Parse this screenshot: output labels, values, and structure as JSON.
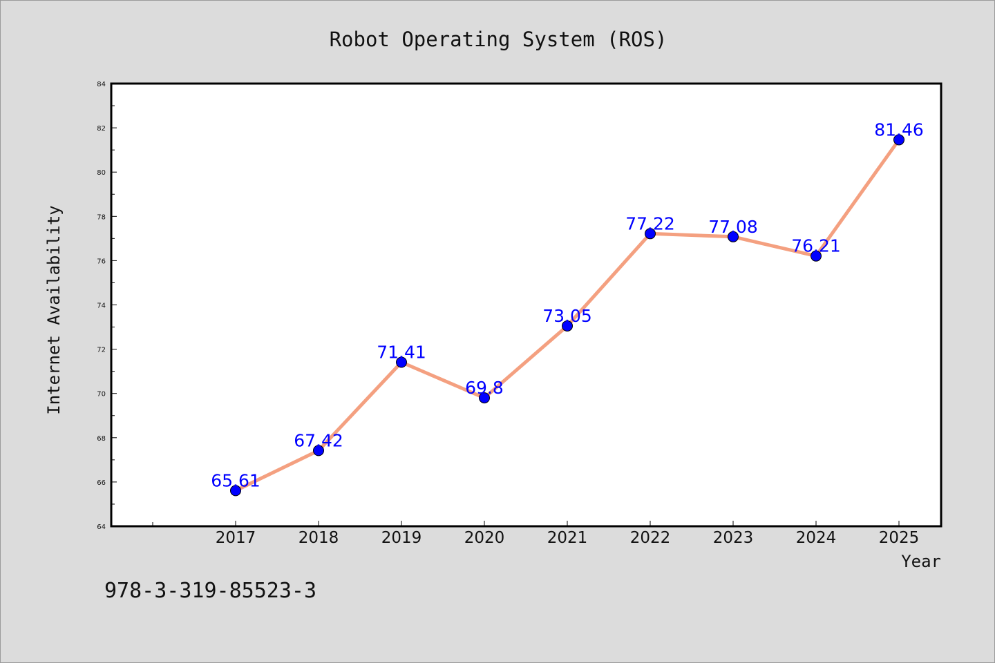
{
  "chart_data": {
    "type": "line",
    "title": "Robot Operating System (ROS)",
    "xlabel": "Year",
    "ylabel": "Internet Availability",
    "x": [
      "2017",
      "2018",
      "2019",
      "2020",
      "2021",
      "2022",
      "2023",
      "2024",
      "2025"
    ],
    "y": [
      65.61,
      67.42,
      71.41,
      69.8,
      73.05,
      77.22,
      77.08,
      76.21,
      81.46
    ],
    "data_labels": [
      "65.61",
      "67.42",
      "71.41",
      "69.8",
      "73.05",
      "77.22",
      "77.08",
      "76.21",
      "81.46"
    ],
    "ylim": [
      64,
      84
    ],
    "yticks": [
      64,
      66,
      68,
      70,
      72,
      74,
      76,
      78,
      80,
      82,
      84
    ],
    "grid": false,
    "legend": "none",
    "line_color": "#f4a080",
    "marker_color": "#0000ff",
    "label_color": "#0000ff"
  },
  "footer": {
    "isbn": "978-3-319-85523-3"
  }
}
